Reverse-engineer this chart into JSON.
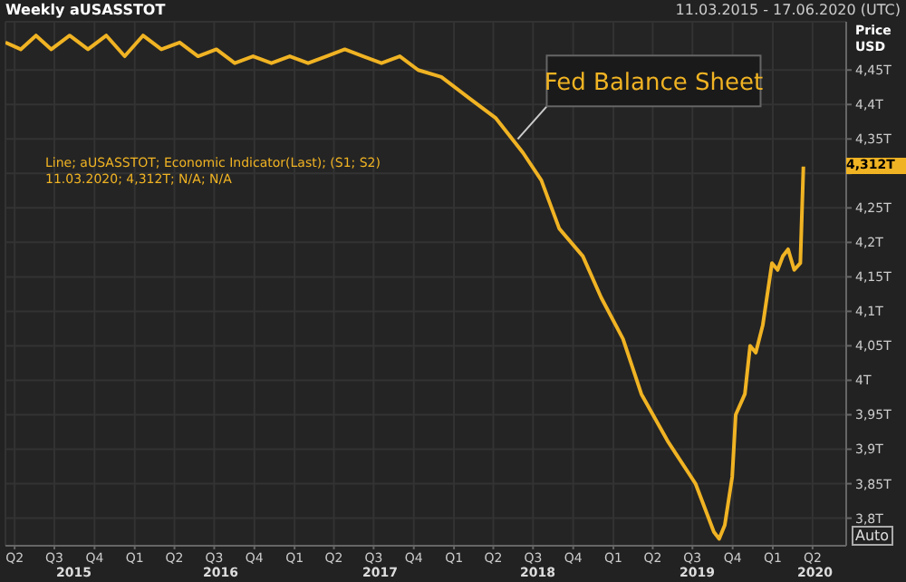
{
  "chart_data": {
    "type": "line",
    "title": "Weekly aUSASSTOT",
    "subtitle": "11.03.2015 - 17.06.2020 (UTC)",
    "ylabel": "Price USD",
    "x": [
      "2015-03-11",
      "2015-04-15",
      "2015-05-20",
      "2015-06-24",
      "2015-08-05",
      "2015-09-16",
      "2015-10-28",
      "2015-12-09",
      "2016-01-20",
      "2016-03-02",
      "2016-04-13",
      "2016-05-25",
      "2016-07-06",
      "2016-08-17",
      "2016-09-28",
      "2016-11-09",
      "2016-12-21",
      "2017-02-01",
      "2017-03-15",
      "2017-04-26",
      "2017-06-07",
      "2017-07-19",
      "2017-08-30",
      "2017-10-11",
      "2017-12-03",
      "2018-02-03",
      "2018-04-07",
      "2018-06-08",
      "2018-07-20",
      "2018-08-30",
      "2018-10-23",
      "2018-12-04",
      "2019-01-23",
      "2019-03-06",
      "2019-05-07",
      "2019-07-08",
      "2019-08-19",
      "2019-08-31",
      "2019-09-13",
      "2019-09-30",
      "2019-10-08",
      "2019-10-29",
      "2019-11-10",
      "2019-11-23",
      "2019-12-09",
      "2019-12-30",
      "2020-01-12",
      "2020-01-24",
      "2020-02-05",
      "2020-02-19",
      "2020-03-04",
      "2020-03-11"
    ],
    "series": [
      {
        "color": "#f0b323",
        "values": [
          4.49,
          4.48,
          4.5,
          4.48,
          4.5,
          4.48,
          4.5,
          4.47,
          4.5,
          4.48,
          4.49,
          4.47,
          4.48,
          4.46,
          4.47,
          4.46,
          4.47,
          4.46,
          4.47,
          4.48,
          4.47,
          4.46,
          4.47,
          4.45,
          4.44,
          4.41,
          4.38,
          4.33,
          4.29,
          4.22,
          4.18,
          4.12,
          4.06,
          3.98,
          3.91,
          3.85,
          3.78,
          3.77,
          3.79,
          3.86,
          3.95,
          3.98,
          4.05,
          4.04,
          4.08,
          4.17,
          4.16,
          4.18,
          4.19,
          4.16,
          4.17,
          4.31
        ]
      }
    ],
    "xlim": [
      "2015-03-11",
      "2020-06-17"
    ],
    "xticks": [
      {
        "value": "2015-04-01",
        "label": "Q2"
      },
      {
        "value": "2015-07-01",
        "label": "Q3"
      },
      {
        "value": "2015-10-01",
        "label": "Q4"
      },
      {
        "value": "2016-01-01",
        "label": "Q1"
      },
      {
        "value": "2016-04-01",
        "label": "Q2"
      },
      {
        "value": "2016-07-01",
        "label": "Q3"
      },
      {
        "value": "2016-10-01",
        "label": "Q4"
      },
      {
        "value": "2017-01-01",
        "label": "Q1"
      },
      {
        "value": "2017-04-01",
        "label": "Q2"
      },
      {
        "value": "2017-07-01",
        "label": "Q3"
      },
      {
        "value": "2017-10-01",
        "label": "Q4"
      },
      {
        "value": "2018-01-01",
        "label": "Q1"
      },
      {
        "value": "2018-04-01",
        "label": "Q2"
      },
      {
        "value": "2018-07-01",
        "label": "Q3"
      },
      {
        "value": "2018-10-01",
        "label": "Q4"
      },
      {
        "value": "2019-01-01",
        "label": "Q1"
      },
      {
        "value": "2019-04-01",
        "label": "Q2"
      },
      {
        "value": "2019-07-01",
        "label": "Q3"
      },
      {
        "value": "2019-10-01",
        "label": "Q4"
      },
      {
        "value": "2020-01-01",
        "label": "Q1"
      },
      {
        "value": "2020-04-01",
        "label": "Q2"
      }
    ],
    "ylim": [
      3.76,
      4.52
    ],
    "yticks": [
      {
        "value": 3.8,
        "label": "3,8T"
      },
      {
        "value": 3.85,
        "label": "3,85T"
      },
      {
        "value": 3.9,
        "label": "3,9T"
      },
      {
        "value": 3.95,
        "label": "3,95T"
      },
      {
        "value": 4,
        "label": "4T"
      },
      {
        "value": 4.05,
        "label": "4,05T"
      },
      {
        "value": 4.1,
        "label": "4,1T"
      },
      {
        "value": 4.15,
        "label": "4,15T"
      },
      {
        "value": 4.2,
        "label": "4,2T"
      },
      {
        "value": 4.25,
        "label": "4,25T"
      },
      {
        "value": 4.3,
        "label": null
      },
      {
        "value": 4.35,
        "label": "4,35T"
      },
      {
        "value": 4.4,
        "label": "4,4T"
      },
      {
        "value": 4.45,
        "label": "4,45T"
      }
    ],
    "grid": true,
    "annotations": [
      "Line; aUSASSTOT; Economic Indicator(Last); (S1; S2)",
      "11.03.2020; 4,312T; N/A; N/A",
      "Auto",
      "4,312T",
      "2015",
      "2016",
      "2017",
      "2018",
      "2019",
      "2020",
      {
        "text": "Fed Balance Sheet",
        "x": "2018-05-27",
        "y": 4.35
      }
    ]
  }
}
